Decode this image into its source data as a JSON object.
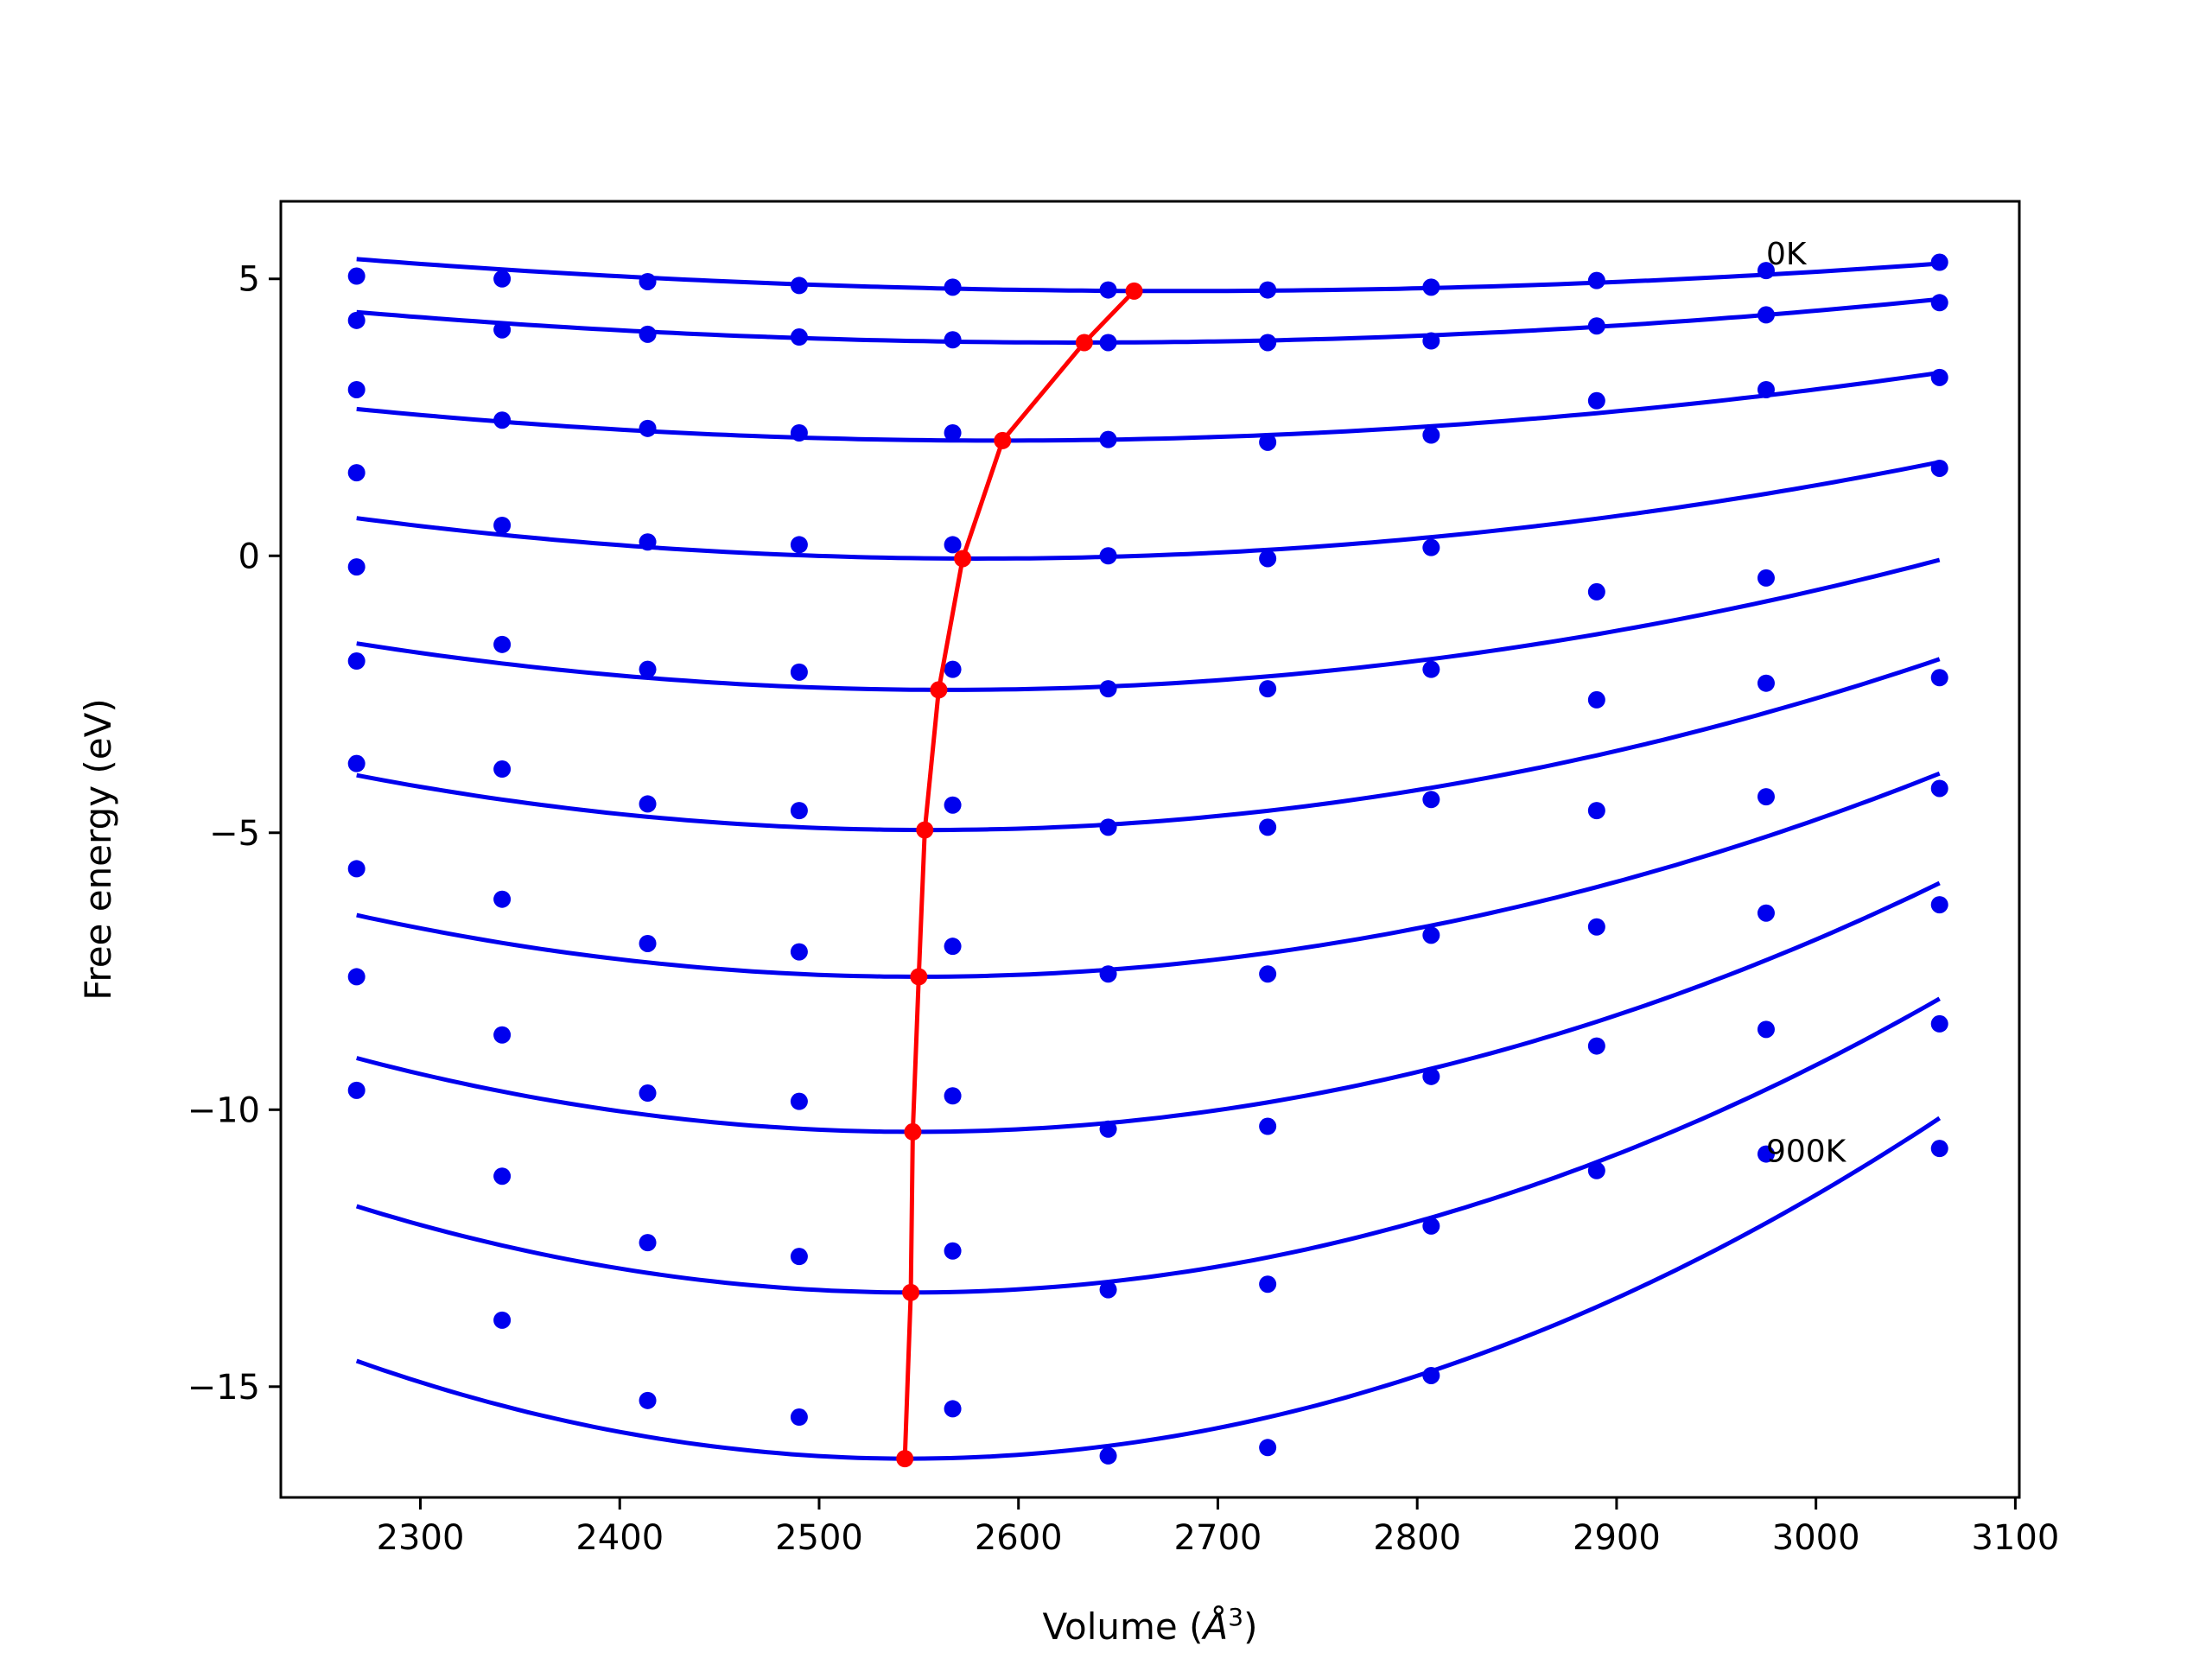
{
  "chart_data": {
    "type": "scatter",
    "xlabel_main": "Volume (",
    "xlabel_unit": "Å",
    "xlabel_sup": "3",
    "xlabel_close": ")",
    "ylabel": "Free energy (eV)",
    "xlim": [
      2230,
      3102
    ],
    "ylim": [
      -17.0,
      6.4
    ],
    "xticks": [
      2300,
      2400,
      2500,
      2600,
      2700,
      2800,
      2900,
      3000,
      3100
    ],
    "yticks": [
      5,
      0,
      -5,
      -10,
      -15
    ],
    "ytick_labels": [
      "5",
      "0",
      "−5",
      "−10",
      "−15"
    ],
    "volumes": [
      2268,
      2341,
      2414,
      2490,
      2567,
      2645,
      2725,
      2807,
      2890,
      2975,
      3062
    ],
    "series": [
      {
        "points": [
          5.05,
          5.0,
          4.95,
          4.88,
          4.85,
          4.8,
          4.8,
          4.85,
          4.97,
          5.15,
          5.3
        ],
        "fit": {
          "a": 3.4e-06,
          "v0": 2680,
          "e0": 4.78
        }
      },
      {
        "points": [
          4.25,
          4.08,
          4.0,
          3.95,
          3.9,
          3.85,
          3.85,
          3.88,
          4.15,
          4.35,
          4.57
        ],
        "fit": {
          "a": 4.2e-06,
          "v0": 2630,
          "e0": 3.85
        }
      },
      {
        "points": [
          3.0,
          2.45,
          2.3,
          2.22,
          2.22,
          2.1,
          2.05,
          2.18,
          2.8,
          3.0,
          3.22
        ],
        "fit": {
          "a": 5.5e-06,
          "v0": 2590,
          "e0": 2.08
        }
      },
      {
        "points": [
          1.5,
          0.55,
          0.25,
          0.2,
          0.2,
          0.0,
          -0.05,
          0.15,
          -0.65,
          -0.4,
          1.58
        ],
        "fit": {
          "a": 7.5e-06,
          "v0": 2580,
          "e0": -0.05
        }
      },
      {
        "points": [
          -0.2,
          -1.6,
          -2.05,
          -2.1,
          -2.05,
          -2.4,
          -2.4,
          -2.05,
          -2.6,
          -2.3,
          -2.2
        ],
        "fit": {
          "a": 9.5e-06,
          "v0": 2565,
          "e0": -2.42
        }
      },
      {
        "points": [
          -1.9,
          -3.85,
          -4.48,
          -4.6,
          -4.5,
          -4.9,
          -4.9,
          -4.4,
          -4.6,
          -4.35,
          -4.2
        ],
        "fit": {
          "a": 1.2e-05,
          "v0": 2555,
          "e0": -4.95
        }
      },
      {
        "points": [
          -3.75,
          -6.2,
          -7.0,
          -7.15,
          -7.05,
          -7.55,
          -7.55,
          -6.85,
          -6.7,
          -6.45,
          -6.3
        ],
        "fit": {
          "a": 1.4e-05,
          "v0": 2550,
          "e0": -7.6
        }
      },
      {
        "points": [
          -5.65,
          -8.65,
          -9.7,
          -9.85,
          -9.75,
          -10.35,
          -10.3,
          -9.4,
          -8.85,
          -8.55,
          -8.45
        ],
        "fit": {
          "a": 1.7e-05,
          "v0": 2548,
          "e0": -10.4
        }
      },
      {
        "points": [
          -7.6,
          -11.2,
          -12.4,
          -12.65,
          -12.55,
          -13.25,
          -13.15,
          -12.1,
          -11.1,
          -10.8,
          -10.7
        ],
        "fit": {
          "a": 2e-05,
          "v0": 2547,
          "e0": -13.3
        }
      },
      {
        "points": [
          -9.65,
          -13.8,
          -15.25,
          -15.55,
          -15.4,
          -16.25,
          -16.1,
          -14.8,
          null,
          null,
          null
        ],
        "fit": {
          "a": 2.3e-05,
          "v0": 2545,
          "e0": -16.3
        }
      }
    ],
    "equilibrium": {
      "x": [
        2658,
        2633,
        2592,
        2572,
        2560,
        2553,
        2550,
        2547,
        2546,
        2543
      ],
      "y": [
        4.78,
        3.85,
        2.08,
        -0.05,
        -2.42,
        -4.95,
        -7.6,
        -10.4,
        -13.3,
        -16.3
      ]
    },
    "annotations": [
      {
        "text": "0K",
        "x": 2975,
        "y": 5.45
      },
      {
        "text": "900K",
        "x": 2975,
        "y": -10.75
      }
    ],
    "colors": {
      "series": "#0000ee",
      "equilibrium": "#ff0000"
    },
    "grid": false,
    "legend": "none"
  }
}
